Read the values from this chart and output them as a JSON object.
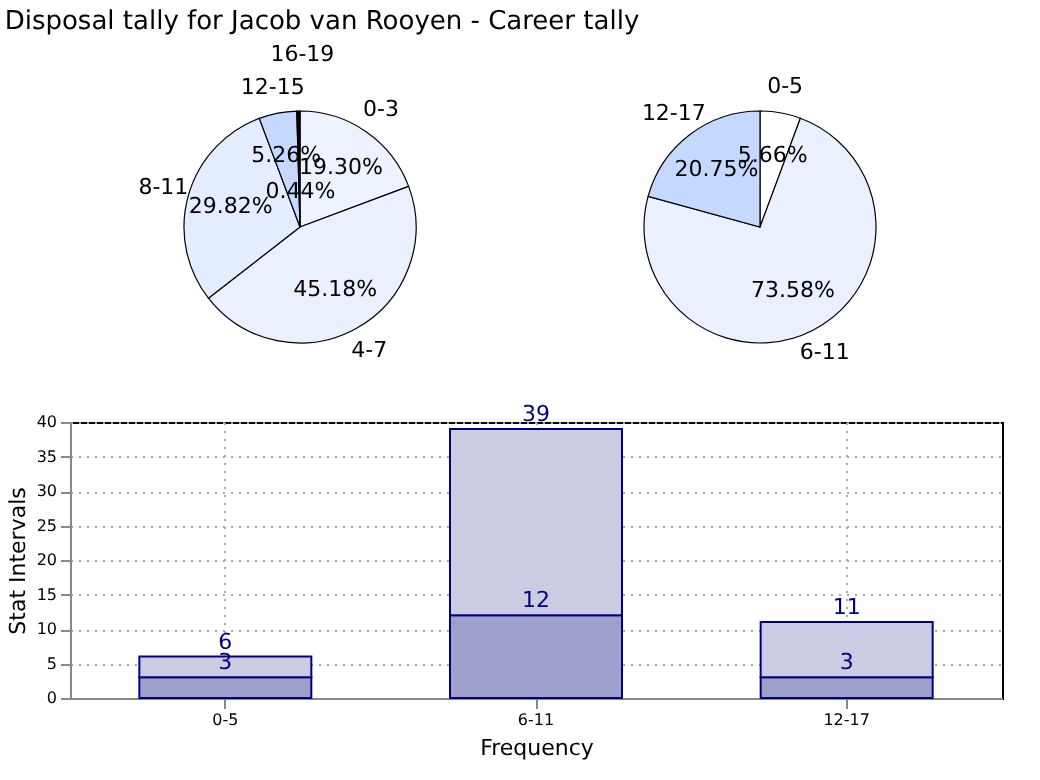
{
  "chart_data": [
    {
      "type": "pie",
      "title": "Disposal tally for Jacob van Rooyen - Career tally",
      "categories": [
        "0-3",
        "4-7",
        "8-11",
        "12-15",
        "16-19"
      ],
      "values": [
        19.3,
        45.18,
        29.82,
        5.26,
        0.44
      ],
      "value_labels": [
        "19.30%",
        "45.18%",
        "29.82%",
        "5.26%",
        "0.44%"
      ],
      "colors": [
        "#edf2ff",
        "#eaf0ff",
        "#e4ecff",
        "#c5d8ff",
        "#000000"
      ]
    },
    {
      "type": "pie",
      "categories": [
        "0-5",
        "6-11",
        "12-17"
      ],
      "values": [
        5.66,
        73.58,
        20.75
      ],
      "value_labels": [
        "5.66%",
        "73.58%",
        "20.75%"
      ],
      "colors": [
        "#ffffff",
        "#eaf0ff",
        "#c5d8ff"
      ]
    },
    {
      "type": "bar",
      "categories": [
        "0-5",
        "6-11",
        "12-17"
      ],
      "xlabel": "Frequency",
      "ylabel": "Stat Intervals",
      "ylim": [
        0,
        40
      ],
      "yticks": [
        0,
        5,
        10,
        15,
        20,
        25,
        30,
        35,
        40
      ],
      "grid": true,
      "stacked": true,
      "totals": [
        "6",
        "39",
        "11"
      ],
      "series": [
        {
          "color": "#a0a0cc",
          "values": [
            3,
            12,
            3
          ],
          "value_labels": [
            "3",
            "12",
            "3"
          ]
        },
        {
          "color": "#cbcbe3",
          "values": [
            3,
            27,
            8
          ]
        }
      ]
    }
  ]
}
